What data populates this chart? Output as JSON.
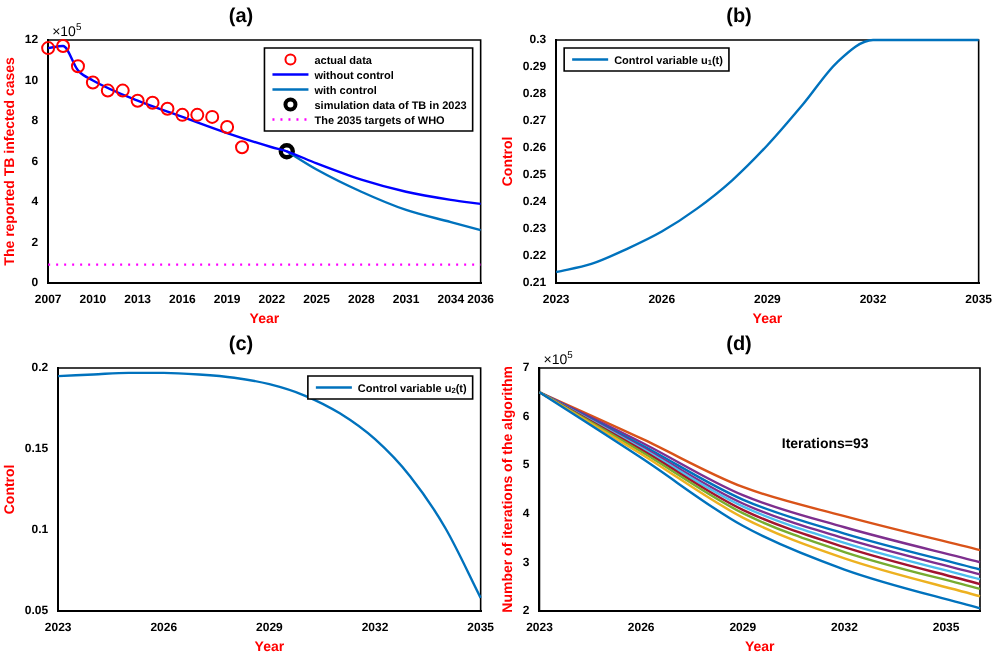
{
  "chart_data": [
    {
      "type": "line",
      "title": "(a)",
      "xlabel": "Year",
      "ylabel": "The reported TB infected cases",
      "annotations": [
        "×10$^{5}$"
      ],
      "xlim": [
        2007,
        2036
      ],
      "xticks": [
        2007,
        2010,
        2013,
        2016,
        2019,
        2022,
        2025,
        2028,
        2031,
        2034,
        2036
      ],
      "ylim": [
        0,
        12
      ],
      "yticks": [
        0,
        2,
        4,
        6,
        8,
        10,
        12
      ],
      "legend": "top right",
      "series": [
        {
          "name": "actual data",
          "type": "scatter",
          "marker": "circle",
          "color": "#ff0000",
          "x": [
            2007,
            2008,
            2009,
            2010,
            2011,
            2012,
            2013,
            2014,
            2015,
            2016,
            2017,
            2018,
            2019,
            2020
          ],
          "values": [
            11.6,
            11.7,
            10.7,
            9.9,
            9.5,
            9.5,
            9.0,
            8.9,
            8.6,
            8.3,
            8.3,
            8.2,
            7.7,
            6.7
          ]
        },
        {
          "name": "without control",
          "color": "#0000ff",
          "x": [
            2007,
            2008,
            2009,
            2010,
            2013,
            2016,
            2019,
            2022,
            2023,
            2025,
            2028,
            2031,
            2034,
            2036
          ],
          "values": [
            11.6,
            11.7,
            10.5,
            10.0,
            9.0,
            8.2,
            7.4,
            6.7,
            6.5,
            5.9,
            5.1,
            4.5,
            4.1,
            3.9
          ]
        },
        {
          "name": "with control",
          "color": "#0072bd",
          "x": [
            2023,
            2025,
            2028,
            2031,
            2034,
            2036
          ],
          "values": [
            6.5,
            5.6,
            4.5,
            3.6,
            3.0,
            2.6
          ]
        },
        {
          "name": "simulation data of TB in 2023",
          "type": "scatter",
          "marker": "circle",
          "color": "#000000",
          "x": [
            2023
          ],
          "values": [
            6.5
          ]
        },
        {
          "name": "The 2035 targets of WHO",
          "line_style": "dotted",
          "color": "#ff00ff",
          "x": [
            2007,
            2036
          ],
          "values": [
            0.9,
            0.9
          ]
        }
      ]
    },
    {
      "type": "line",
      "title": "(b)",
      "xlabel": "Year",
      "ylabel": "Control",
      "xlim": [
        2023,
        2035
      ],
      "xticks": [
        2023,
        2026,
        2029,
        2032,
        2035
      ],
      "ylim": [
        0.21,
        0.3
      ],
      "yticks": [
        0.21,
        0.22,
        0.23,
        0.24,
        0.25,
        0.26,
        0.27,
        0.28,
        0.29,
        0.3
      ],
      "legend": "top left",
      "series": [
        {
          "name": "Control variable u$_{1}$(t)",
          "color": "#0072bd",
          "x": [
            2023,
            2024,
            2025,
            2026,
            2027,
            2028,
            2029,
            2030,
            2031,
            2032,
            2033,
            2034,
            2035
          ],
          "values": [
            0.214,
            0.217,
            0.2225,
            0.229,
            0.2375,
            0.248,
            0.261,
            0.276,
            0.292,
            0.3,
            0.3,
            0.3,
            0.3
          ]
        }
      ]
    },
    {
      "type": "line",
      "title": "(c)",
      "xlabel": "Year",
      "ylabel": "Control",
      "xlim": [
        2023,
        2035
      ],
      "xticks": [
        2023,
        2026,
        2029,
        2032,
        2035
      ],
      "ylim": [
        0.05,
        0.2
      ],
      "yticks": [
        0.05,
        0.1,
        0.15,
        0.2
      ],
      "legend": "top right",
      "series": [
        {
          "name": "Control variable u$_{2}$(t)",
          "color": "#0072bd",
          "x": [
            2023,
            2024,
            2025,
            2026,
            2027,
            2028,
            2029,
            2030,
            2031,
            2032,
            2033,
            2034,
            2035
          ],
          "values": [
            0.195,
            0.196,
            0.197,
            0.197,
            0.196,
            0.194,
            0.19,
            0.183,
            0.172,
            0.156,
            0.133,
            0.101,
            0.058
          ]
        }
      ]
    },
    {
      "type": "line",
      "title": "(d)",
      "xlabel": "Year",
      "ylabel": "Number of iterations of the algorithm",
      "annotations": [
        "×10$^{5}$",
        "Iterations=93"
      ],
      "xlim": [
        2023,
        2036
      ],
      "xticks": [
        2023,
        2026,
        2029,
        2032,
        2035
      ],
      "ylim": [
        2,
        7
      ],
      "yticks": [
        2,
        3,
        4,
        5,
        6,
        7
      ],
      "x": [
        2023,
        2026,
        2029,
        2032,
        2036
      ],
      "series": [
        {
          "color": "#0072bd",
          "values": [
            6.5,
            5.15,
            3.75,
            2.85,
            2.05
          ]
        },
        {
          "color": "#edb120",
          "values": [
            6.5,
            5.23,
            3.92,
            3.08,
            2.3
          ]
        },
        {
          "color": "#77ac30",
          "values": [
            6.5,
            5.28,
            4.01,
            3.21,
            2.45
          ]
        },
        {
          "color": "#a2142f",
          "values": [
            6.5,
            5.32,
            4.08,
            3.31,
            2.55
          ]
        },
        {
          "color": "#4dbeee",
          "values": [
            6.5,
            5.35,
            4.15,
            3.4,
            2.65
          ]
        },
        {
          "color": "#7e2f8e",
          "values": [
            6.5,
            5.38,
            4.21,
            3.49,
            2.75
          ]
        },
        {
          "color": "#0072bd",
          "values": [
            6.5,
            5.42,
            4.29,
            3.59,
            2.85
          ]
        },
        {
          "color": "#7e2f8e",
          "values": [
            6.5,
            5.47,
            4.38,
            3.72,
            3.0
          ]
        },
        {
          "color": "#d95319",
          "values": [
            6.5,
            5.55,
            4.55,
            3.95,
            3.25
          ]
        }
      ]
    }
  ]
}
